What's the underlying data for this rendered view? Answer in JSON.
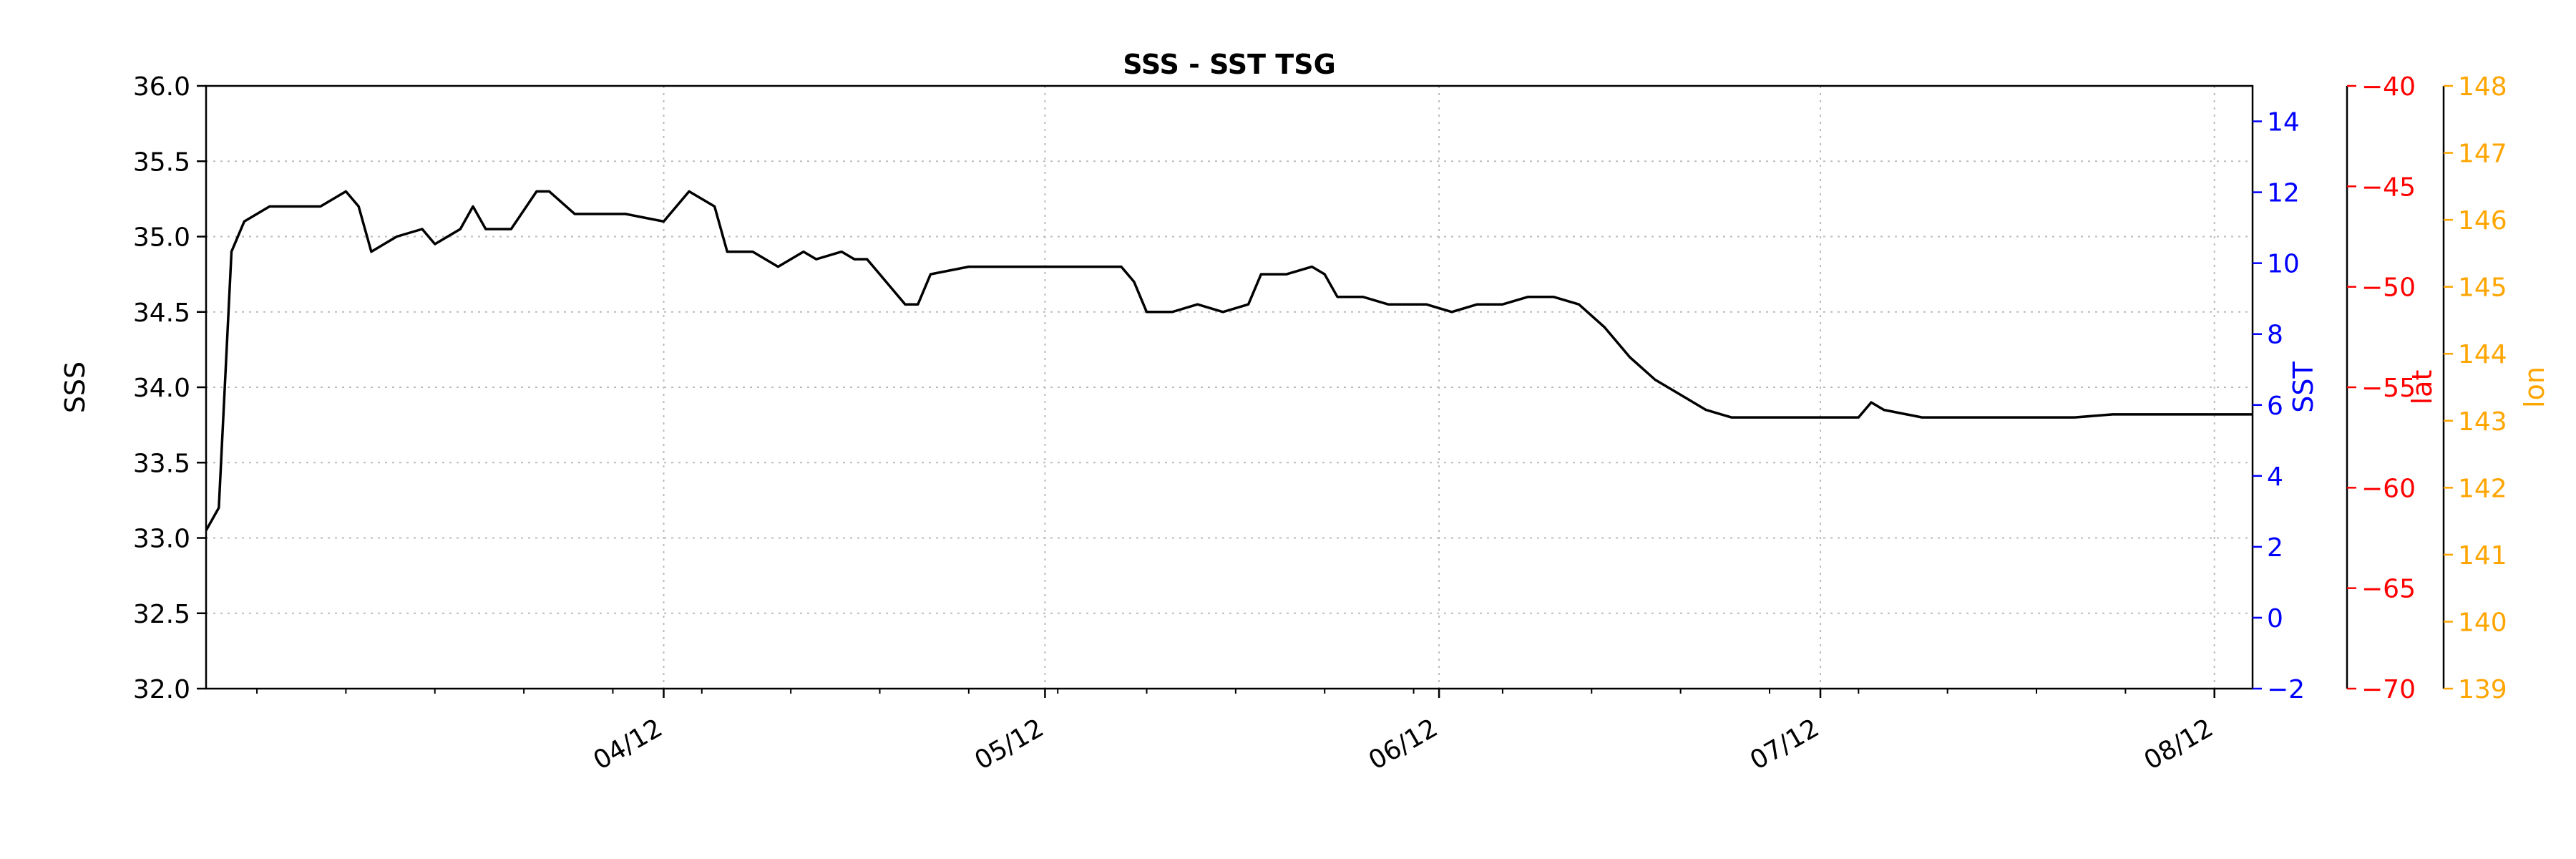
{
  "chart_data": {
    "type": "line",
    "title": "SSS - SST TSG",
    "x_axis": {
      "type": "date",
      "range": [
        "2024-03-07",
        "2024-08-15"
      ],
      "tick_labels": [
        "04/12",
        "05/12",
        "06/12",
        "07/12",
        "08/12"
      ],
      "tick_dates": [
        "2024-04-12",
        "2024-05-12",
        "2024-06-12",
        "2024-07-12",
        "2024-08-12"
      ]
    },
    "grid": true,
    "axes": [
      {
        "id": "sss",
        "label": "SSS",
        "side": "left",
        "color": "#000000",
        "ylim": [
          32.0,
          36.0
        ],
        "tick_labels": [
          "32.0",
          "32.5",
          "33.0",
          "33.5",
          "34.0",
          "34.5",
          "35.0",
          "35.5",
          "36.0"
        ]
      },
      {
        "id": "sst",
        "label": "SST",
        "side": "right",
        "color": "#0000ff",
        "ylim": [
          -2,
          15
        ],
        "tick_labels": [
          "−2",
          "0",
          "2",
          "4",
          "6",
          "8",
          "10",
          "12",
          "14"
        ]
      },
      {
        "id": "lat",
        "label": "lat",
        "side": "right",
        "color": "#ff0000",
        "ylim": [
          -70,
          -40
        ],
        "tick_labels": [
          "−70",
          "−65",
          "−60",
          "−55",
          "−50",
          "−45",
          "−40"
        ]
      },
      {
        "id": "lon",
        "label": "lon",
        "side": "right",
        "color": "#ffa500",
        "ylim": [
          139,
          148
        ],
        "tick_labels": [
          "139",
          "140",
          "141",
          "142",
          "143",
          "144",
          "145",
          "146",
          "147",
          "148"
        ]
      }
    ],
    "series": [
      {
        "axis": "sss",
        "color": "#000000",
        "points": [
          [
            "2024-03-07",
            33.05
          ],
          [
            "2024-03-08",
            33.2
          ],
          [
            "2024-03-09",
            34.9
          ],
          [
            "2024-03-10",
            35.1
          ],
          [
            "2024-03-12",
            35.2
          ],
          [
            "2024-03-14",
            35.2
          ],
          [
            "2024-03-16",
            35.2
          ],
          [
            "2024-03-18",
            35.3
          ],
          [
            "2024-03-19",
            35.2
          ],
          [
            "2024-03-20",
            34.9
          ],
          [
            "2024-03-21",
            34.95
          ],
          [
            "2024-03-22",
            35.0
          ],
          [
            "2024-03-24",
            35.05
          ],
          [
            "2024-03-25",
            34.95
          ],
          [
            "2024-03-27",
            35.05
          ],
          [
            "2024-03-28",
            35.2
          ],
          [
            "2024-03-29",
            35.05
          ],
          [
            "2024-03-31",
            35.05
          ],
          [
            "2024-04-02",
            35.3
          ],
          [
            "2024-04-03",
            35.3
          ],
          [
            "2024-04-05",
            35.15
          ],
          [
            "2024-04-07",
            35.15
          ],
          [
            "2024-04-09",
            35.15
          ],
          [
            "2024-04-12",
            35.1
          ],
          [
            "2024-04-14",
            35.3
          ],
          [
            "2024-04-16",
            35.2
          ],
          [
            "2024-04-17",
            34.9
          ],
          [
            "2024-04-19",
            34.9
          ],
          [
            "2024-04-21",
            34.8
          ],
          [
            "2024-04-23",
            34.9
          ],
          [
            "2024-04-24",
            34.85
          ],
          [
            "2024-04-26",
            34.9
          ],
          [
            "2024-04-27",
            34.85
          ],
          [
            "2024-04-28",
            34.85
          ],
          [
            "2024-04-30",
            34.65
          ],
          [
            "2024-05-01",
            34.55
          ],
          [
            "2024-05-02",
            34.55
          ],
          [
            "2024-05-03",
            34.75
          ],
          [
            "2024-05-06",
            34.8
          ],
          [
            "2024-05-10",
            34.8
          ],
          [
            "2024-05-13",
            34.8
          ],
          [
            "2024-05-18",
            34.8
          ],
          [
            "2024-05-19",
            34.7
          ],
          [
            "2024-05-20",
            34.5
          ],
          [
            "2024-05-22",
            34.5
          ],
          [
            "2024-05-24",
            34.55
          ],
          [
            "2024-05-26",
            34.5
          ],
          [
            "2024-05-28",
            34.55
          ],
          [
            "2024-05-29",
            34.75
          ],
          [
            "2024-05-31",
            34.75
          ],
          [
            "2024-06-02",
            34.8
          ],
          [
            "2024-06-03",
            34.75
          ],
          [
            "2024-06-04",
            34.6
          ],
          [
            "2024-06-06",
            34.6
          ],
          [
            "2024-06-08",
            34.55
          ],
          [
            "2024-06-11",
            34.55
          ],
          [
            "2024-06-13",
            34.5
          ],
          [
            "2024-06-15",
            34.55
          ],
          [
            "2024-06-17",
            34.55
          ],
          [
            "2024-06-19",
            34.6
          ],
          [
            "2024-06-21",
            34.6
          ],
          [
            "2024-06-23",
            34.55
          ],
          [
            "2024-06-25",
            34.4
          ],
          [
            "2024-06-27",
            34.2
          ],
          [
            "2024-06-29",
            34.05
          ],
          [
            "2024-07-01",
            33.95
          ],
          [
            "2024-07-03",
            33.85
          ],
          [
            "2024-07-05",
            33.8
          ],
          [
            "2024-07-07",
            33.8
          ],
          [
            "2024-07-10",
            33.8
          ],
          [
            "2024-07-13",
            33.8
          ],
          [
            "2024-07-15",
            33.8
          ],
          [
            "2024-07-16",
            33.9
          ],
          [
            "2024-07-17",
            33.85
          ],
          [
            "2024-07-20",
            33.8
          ],
          [
            "2024-07-23",
            33.8
          ],
          [
            "2024-07-26",
            33.8
          ],
          [
            "2024-07-29",
            33.8
          ],
          [
            "2024-08-01",
            33.8
          ],
          [
            "2024-08-04",
            33.82
          ],
          [
            "2024-08-06",
            33.82
          ],
          [
            "2024-08-08",
            33.82
          ],
          [
            "2024-08-10",
            33.82
          ],
          [
            "2024-08-13",
            33.82
          ],
          [
            "2024-08-15",
            33.82
          ]
        ]
      }
    ]
  }
}
